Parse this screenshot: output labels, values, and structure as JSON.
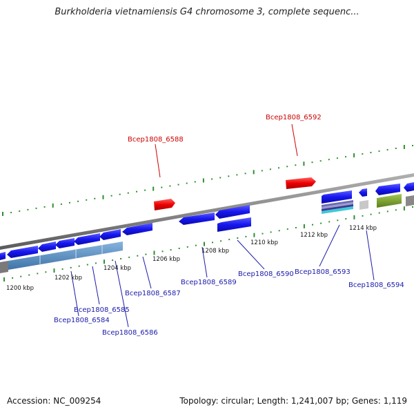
{
  "title": "Burkholderia vietnamiensis G4 chromosome 3, complete sequenc...",
  "footer": {
    "accession": "Accession: NC_009254",
    "summary": "Topology: circular; Length: 1,241,007 bp; Genes: 1,119"
  },
  "scale_labels": [
    "1200 kbp",
    "1202 kbp",
    "1204 kbp",
    "1206 kbp",
    "1208 kbp",
    "1210 kbp",
    "1212 kbp",
    "1214 kbp"
  ],
  "genes_top": [
    "Bcep1808_6592",
    "Bcep1808_6588"
  ],
  "genes_bottom": [
    "Bcep1808_6589",
    "Bcep1808_6590",
    "Bcep1808_6593",
    "Bcep1808_6594",
    "Bcep1808_6587",
    "Bcep1808_6585",
    "Bcep1808_6584",
    "Bcep1808_6586"
  ],
  "colors": {
    "forward_gene": "#e00000",
    "reverse_gene": "#1a1aee",
    "rna_bar": "#5a8fc4",
    "olive_bar": "#7aa22a",
    "backbone": "#8a8a8a",
    "tick": "#2f8f2f",
    "top_label": "#cc0000",
    "bottom_label": "#1a1aaa"
  }
}
